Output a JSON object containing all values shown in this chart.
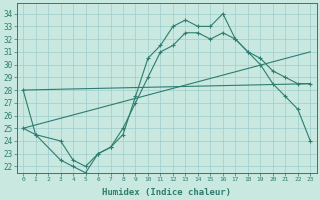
{
  "line1_x": [
    0,
    1,
    3,
    4,
    5,
    6,
    7,
    8,
    9,
    10,
    11,
    12,
    13,
    14,
    15,
    16,
    17,
    18,
    19,
    20,
    21,
    22,
    23
  ],
  "line1_y": [
    28,
    24.5,
    22.5,
    22,
    21.5,
    23,
    23.5,
    24.5,
    27.5,
    30.5,
    31.5,
    33,
    33.5,
    33,
    33,
    34,
    32,
    31,
    30.5,
    29.5,
    29,
    28.5,
    28.5
  ],
  "line2_x": [
    0,
    1,
    3,
    4,
    5,
    6,
    7,
    8,
    9,
    10,
    11,
    12,
    13,
    14,
    15,
    16,
    17,
    18,
    19,
    20,
    21,
    22,
    23
  ],
  "line2_y": [
    25,
    24.5,
    24,
    22.5,
    22,
    23,
    23.5,
    25,
    27,
    29,
    31,
    31.5,
    32.5,
    32.5,
    32,
    32.5,
    32,
    31,
    30,
    28.5,
    27.5,
    26.5,
    24
  ],
  "line3_x": [
    0,
    23
  ],
  "line3_y": [
    28,
    28.5
  ],
  "line4_x": [
    0,
    23
  ],
  "line4_y": [
    25,
    31
  ],
  "color": "#2e7d6e",
  "bg_color": "#c8e8e0",
  "grid_color": "#9ecece",
  "xlabel": "Humidex (Indice chaleur)",
  "yticks": [
    22,
    23,
    24,
    25,
    26,
    27,
    28,
    29,
    30,
    31,
    32,
    33,
    34
  ],
  "xticks": [
    0,
    1,
    2,
    3,
    4,
    5,
    6,
    7,
    8,
    9,
    10,
    11,
    12,
    13,
    14,
    15,
    16,
    17,
    18,
    19,
    20,
    21,
    22,
    23
  ],
  "ylim": [
    21.5,
    34.8
  ],
  "xlim": [
    -0.5,
    23.5
  ]
}
